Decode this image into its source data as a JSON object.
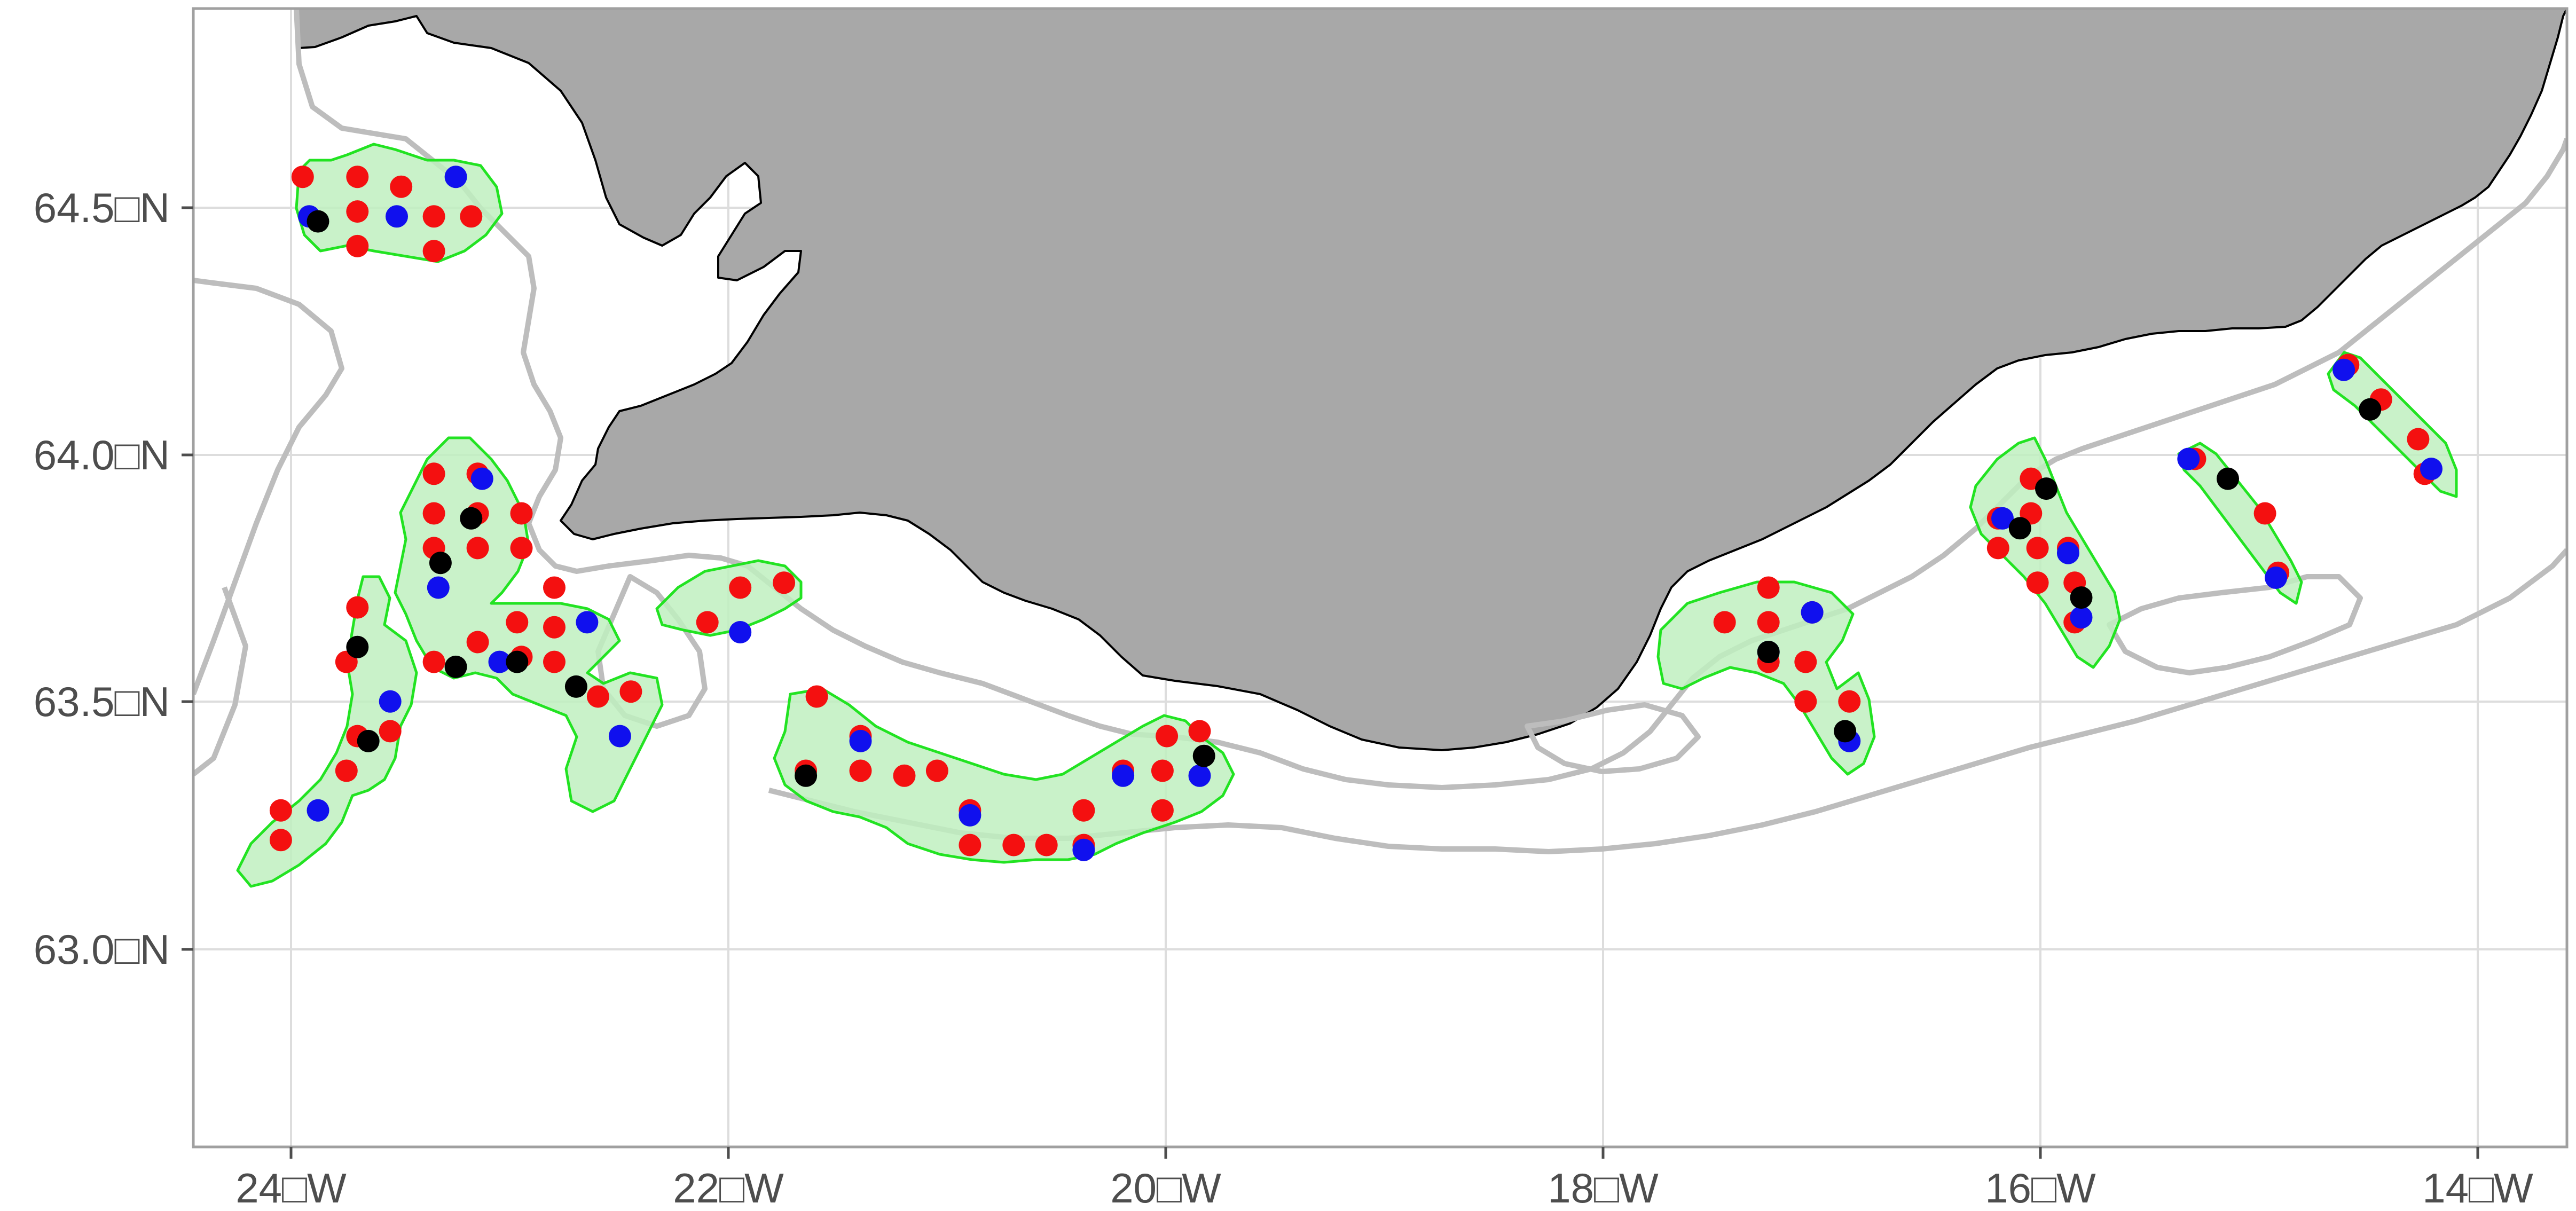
{
  "map": {
    "x_ticks": [
      {
        "lon": -24,
        "label": "24□W"
      },
      {
        "lon": -22,
        "label": "22□W"
      },
      {
        "lon": -20,
        "label": "20□W"
      },
      {
        "lon": -18,
        "label": "18□W"
      },
      {
        "lon": -16,
        "label": "16□W"
      },
      {
        "lon": -14,
        "label": "14□W"
      }
    ],
    "y_ticks": [
      {
        "lat": 64.5,
        "label": "64.5□N"
      },
      {
        "lat": 64.0,
        "label": "64.0□N"
      },
      {
        "lat": 63.5,
        "label": "63.5□N"
      },
      {
        "lat": 63.0,
        "label": "63.0□N"
      }
    ],
    "xlim": [
      -24.45,
      -13.6
    ],
    "ylim": [
      62.6,
      64.9
    ],
    "grid": true,
    "colors": {
      "land": "#a8a8a8",
      "coast": "#000000",
      "contour": "#bdbdbd",
      "area_fill": "#bff0bf",
      "area_edge": "#22e322",
      "grid": "#dddddd",
      "axes": "#a0a0a0"
    },
    "point_colors": {
      "red": "#f41010",
      "blue": "#1010ee",
      "black": "#000000"
    },
    "points": [
      {
        "lon": -23.95,
        "lat": 64.56,
        "c": "red"
      },
      {
        "lon": -23.7,
        "lat": 64.56,
        "c": "red"
      },
      {
        "lon": -23.25,
        "lat": 64.56,
        "c": "blue"
      },
      {
        "lon": -23.92,
        "lat": 64.48,
        "c": "blue"
      },
      {
        "lon": -23.88,
        "lat": 64.47,
        "c": "black"
      },
      {
        "lon": -23.7,
        "lat": 64.49,
        "c": "red"
      },
      {
        "lon": -23.5,
        "lat": 64.54,
        "c": "red"
      },
      {
        "lon": -23.35,
        "lat": 64.48,
        "c": "red"
      },
      {
        "lon": -23.52,
        "lat": 64.48,
        "c": "blue"
      },
      {
        "lon": -23.18,
        "lat": 64.48,
        "c": "red"
      },
      {
        "lon": -23.7,
        "lat": 64.42,
        "c": "red"
      },
      {
        "lon": -23.35,
        "lat": 64.41,
        "c": "red"
      },
      {
        "lon": -23.35,
        "lat": 63.96,
        "c": "red"
      },
      {
        "lon": -23.15,
        "lat": 63.96,
        "c": "red"
      },
      {
        "lon": -23.13,
        "lat": 63.95,
        "c": "blue"
      },
      {
        "lon": -23.35,
        "lat": 63.88,
        "c": "red"
      },
      {
        "lon": -23.15,
        "lat": 63.88,
        "c": "red"
      },
      {
        "lon": -22.95,
        "lat": 63.88,
        "c": "red"
      },
      {
        "lon": -23.18,
        "lat": 63.87,
        "c": "black"
      },
      {
        "lon": -23.35,
        "lat": 63.81,
        "c": "red"
      },
      {
        "lon": -23.15,
        "lat": 63.81,
        "c": "red"
      },
      {
        "lon": -22.95,
        "lat": 63.81,
        "c": "red"
      },
      {
        "lon": -23.32,
        "lat": 63.78,
        "c": "black"
      },
      {
        "lon": -23.33,
        "lat": 63.73,
        "c": "blue"
      },
      {
        "lon": -23.15,
        "lat": 63.62,
        "c": "red"
      },
      {
        "lon": -22.97,
        "lat": 63.66,
        "c": "red"
      },
      {
        "lon": -22.8,
        "lat": 63.73,
        "c": "red"
      },
      {
        "lon": -22.8,
        "lat": 63.65,
        "c": "red"
      },
      {
        "lon": -22.65,
        "lat": 63.66,
        "c": "blue"
      },
      {
        "lon": -22.95,
        "lat": 63.59,
        "c": "red"
      },
      {
        "lon": -22.97,
        "lat": 63.58,
        "c": "black"
      },
      {
        "lon": -22.8,
        "lat": 63.58,
        "c": "red"
      },
      {
        "lon": -23.05,
        "lat": 63.58,
        "c": "blue"
      },
      {
        "lon": -23.35,
        "lat": 63.58,
        "c": "red"
      },
      {
        "lon": -23.25,
        "lat": 63.57,
        "c": "black"
      },
      {
        "lon": -22.7,
        "lat": 63.53,
        "c": "black"
      },
      {
        "lon": -22.6,
        "lat": 63.51,
        "c": "red"
      },
      {
        "lon": -22.45,
        "lat": 63.52,
        "c": "red"
      },
      {
        "lon": -22.5,
        "lat": 63.43,
        "c": "blue"
      },
      {
        "lon": -23.7,
        "lat": 63.69,
        "c": "red"
      },
      {
        "lon": -23.7,
        "lat": 63.61,
        "c": "black"
      },
      {
        "lon": -23.75,
        "lat": 63.58,
        "c": "red"
      },
      {
        "lon": -23.55,
        "lat": 63.5,
        "c": "blue"
      },
      {
        "lon": -23.7,
        "lat": 63.43,
        "c": "red"
      },
      {
        "lon": -23.55,
        "lat": 63.44,
        "c": "red"
      },
      {
        "lon": -23.65,
        "lat": 63.42,
        "c": "black"
      },
      {
        "lon": -23.75,
        "lat": 63.36,
        "c": "red"
      },
      {
        "lon": -24.05,
        "lat": 63.28,
        "c": "red"
      },
      {
        "lon": -23.88,
        "lat": 63.28,
        "c": "blue"
      },
      {
        "lon": -24.05,
        "lat": 63.22,
        "c": "red"
      },
      {
        "lon": -22.1,
        "lat": 63.66,
        "c": "red"
      },
      {
        "lon": -21.95,
        "lat": 63.73,
        "c": "red"
      },
      {
        "lon": -21.75,
        "lat": 63.74,
        "c": "red"
      },
      {
        "lon": -21.95,
        "lat": 63.64,
        "c": "blue"
      },
      {
        "lon": -21.6,
        "lat": 63.51,
        "c": "red"
      },
      {
        "lon": -21.4,
        "lat": 63.43,
        "c": "red"
      },
      {
        "lon": -21.4,
        "lat": 63.42,
        "c": "blue"
      },
      {
        "lon": -21.65,
        "lat": 63.36,
        "c": "red"
      },
      {
        "lon": -21.65,
        "lat": 63.35,
        "c": "black"
      },
      {
        "lon": -21.4,
        "lat": 63.36,
        "c": "red"
      },
      {
        "lon": -21.2,
        "lat": 63.35,
        "c": "red"
      },
      {
        "lon": -21.05,
        "lat": 63.36,
        "c": "red"
      },
      {
        "lon": -20.9,
        "lat": 63.28,
        "c": "red"
      },
      {
        "lon": -20.9,
        "lat": 63.27,
        "c": "blue"
      },
      {
        "lon": -20.9,
        "lat": 63.21,
        "c": "red"
      },
      {
        "lon": -20.7,
        "lat": 63.21,
        "c": "red"
      },
      {
        "lon": -20.55,
        "lat": 63.21,
        "c": "red"
      },
      {
        "lon": -20.38,
        "lat": 63.21,
        "c": "red"
      },
      {
        "lon": -20.38,
        "lat": 63.2,
        "c": "blue"
      },
      {
        "lon": -20.38,
        "lat": 63.28,
        "c": "red"
      },
      {
        "lon": -20.2,
        "lat": 63.36,
        "c": "red"
      },
      {
        "lon": -20.2,
        "lat": 63.35,
        "c": "blue"
      },
      {
        "lon": -20.0,
        "lat": 63.43,
        "c": "red"
      },
      {
        "lon": -19.85,
        "lat": 63.44,
        "c": "red"
      },
      {
        "lon": -19.83,
        "lat": 63.39,
        "c": "black"
      },
      {
        "lon": -20.02,
        "lat": 63.36,
        "c": "red"
      },
      {
        "lon": -19.85,
        "lat": 63.35,
        "c": "blue"
      },
      {
        "lon": -20.02,
        "lat": 63.28,
        "c": "red"
      },
      {
        "lon": -17.45,
        "lat": 63.66,
        "c": "red"
      },
      {
        "lon": -17.25,
        "lat": 63.73,
        "c": "red"
      },
      {
        "lon": -17.25,
        "lat": 63.66,
        "c": "red"
      },
      {
        "lon": -17.05,
        "lat": 63.68,
        "c": "red"
      },
      {
        "lon": -17.05,
        "lat": 63.68,
        "c": "blue"
      },
      {
        "lon": -17.25,
        "lat": 63.58,
        "c": "red"
      },
      {
        "lon": -17.25,
        "lat": 63.6,
        "c": "blue"
      },
      {
        "lon": -17.25,
        "lat": 63.6,
        "c": "black"
      },
      {
        "lon": -17.08,
        "lat": 63.58,
        "c": "red"
      },
      {
        "lon": -17.08,
        "lat": 63.5,
        "c": "red"
      },
      {
        "lon": -16.88,
        "lat": 63.5,
        "c": "red"
      },
      {
        "lon": -16.9,
        "lat": 63.44,
        "c": "black"
      },
      {
        "lon": -16.88,
        "lat": 63.42,
        "c": "blue"
      },
      {
        "lon": -16.2,
        "lat": 63.87,
        "c": "red"
      },
      {
        "lon": -16.18,
        "lat": 63.87,
        "c": "blue"
      },
      {
        "lon": -16.05,
        "lat": 63.95,
        "c": "red"
      },
      {
        "lon": -15.98,
        "lat": 63.93,
        "c": "black"
      },
      {
        "lon": -16.05,
        "lat": 63.88,
        "c": "red"
      },
      {
        "lon": -16.1,
        "lat": 63.85,
        "c": "black"
      },
      {
        "lon": -16.2,
        "lat": 63.81,
        "c": "red"
      },
      {
        "lon": -16.02,
        "lat": 63.81,
        "c": "red"
      },
      {
        "lon": -15.88,
        "lat": 63.81,
        "c": "red"
      },
      {
        "lon": -15.88,
        "lat": 63.8,
        "c": "blue"
      },
      {
        "lon": -16.02,
        "lat": 63.74,
        "c": "red"
      },
      {
        "lon": -15.85,
        "lat": 63.74,
        "c": "red"
      },
      {
        "lon": -15.82,
        "lat": 63.71,
        "c": "black"
      },
      {
        "lon": -15.85,
        "lat": 63.66,
        "c": "red"
      },
      {
        "lon": -15.82,
        "lat": 63.67,
        "c": "blue"
      },
      {
        "lon": -15.3,
        "lat": 63.99,
        "c": "red"
      },
      {
        "lon": -15.33,
        "lat": 63.99,
        "c": "blue"
      },
      {
        "lon": -15.15,
        "lat": 63.95,
        "c": "black"
      },
      {
        "lon": -14.98,
        "lat": 63.88,
        "c": "red"
      },
      {
        "lon": -14.92,
        "lat": 63.76,
        "c": "red"
      },
      {
        "lon": -14.93,
        "lat": 63.75,
        "c": "blue"
      },
      {
        "lon": -14.6,
        "lat": 64.18,
        "c": "red"
      },
      {
        "lon": -14.62,
        "lat": 64.17,
        "c": "blue"
      },
      {
        "lon": -14.45,
        "lat": 64.11,
        "c": "red"
      },
      {
        "lon": -14.5,
        "lat": 64.09,
        "c": "black"
      },
      {
        "lon": -14.28,
        "lat": 64.03,
        "c": "red"
      },
      {
        "lon": -14.25,
        "lat": 63.96,
        "c": "red"
      },
      {
        "lon": -14.22,
        "lat": 63.97,
        "c": "blue"
      }
    ]
  }
}
